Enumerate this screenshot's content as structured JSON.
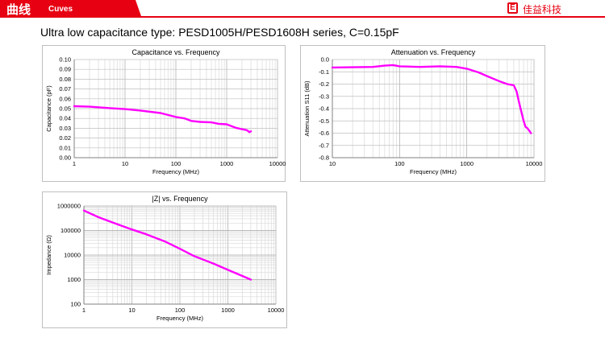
{
  "header": {
    "title": "曲线",
    "subtitle": "Cuves",
    "brand": "佳益科技",
    "brand_icon": "logo-icon",
    "accent": "#e60012"
  },
  "page_heading": "Ultra low capacitance type: PESD1005H/PESD1608H series, C=0.15pF",
  "line_color": "#ff00ff",
  "chart_data": [
    {
      "type": "line",
      "title": "Capacitance vs. Frequency",
      "xlabel": "Frequency (MHz)",
      "ylabel": "Capacitance (pF)",
      "x_scale": "log",
      "xlim": [
        1,
        10000
      ],
      "ylim": [
        0,
        0.1
      ],
      "x_ticks": [
        "1",
        "10",
        "100",
        "1000",
        "10000"
      ],
      "y_ticks": [
        "0.00",
        "0.01",
        "0.02",
        "0.03",
        "0.04",
        "0.05",
        "0.06",
        "0.07",
        "0.08",
        "0.09",
        "0.10"
      ],
      "grid": true,
      "series": [
        {
          "x": [
            1,
            2,
            5,
            10,
            20,
            50,
            100,
            150,
            200,
            300,
            500,
            700,
            1000,
            1500,
            2000,
            2500,
            2800,
            3000
          ],
          "y": [
            0.0525,
            0.052,
            0.0505,
            0.0495,
            0.048,
            0.0455,
            0.0415,
            0.04,
            0.0375,
            0.0365,
            0.036,
            0.0345,
            0.034,
            0.0305,
            0.029,
            0.028,
            0.026,
            0.027
          ]
        }
      ]
    },
    {
      "type": "line",
      "title": "Attenuation vs. Frequency",
      "xlabel": "Frequency (MHz)",
      "ylabel": "Attenuation S11 (dB)",
      "x_scale": "log",
      "xlim": [
        10,
        10000
      ],
      "ylim": [
        -0.8,
        0
      ],
      "x_ticks": [
        "10",
        "100",
        "1000",
        "10000"
      ],
      "y_ticks": [
        "0.0",
        "-0.1",
        "-0.2",
        "-0.3",
        "-0.4",
        "-0.5",
        "-0.6",
        "-0.7",
        "-0.8"
      ],
      "grid": true,
      "series": [
        {
          "x": [
            10,
            20,
            40,
            60,
            80,
            100,
            200,
            400,
            700,
            1000,
            1500,
            2000,
            3000,
            4000,
            4500,
            5000,
            5500,
            6000,
            7000,
            7500,
            8000,
            8500,
            9000
          ],
          "y": [
            -0.065,
            -0.063,
            -0.06,
            -0.05,
            -0.045,
            -0.055,
            -0.06,
            -0.055,
            -0.06,
            -0.075,
            -0.105,
            -0.135,
            -0.175,
            -0.2,
            -0.205,
            -0.21,
            -0.26,
            -0.35,
            -0.5,
            -0.55,
            -0.56,
            -0.58,
            -0.6
          ]
        }
      ]
    },
    {
      "type": "line",
      "title": "|Z| vs. Frequency",
      "xlabel": "Frequency (MHz)",
      "ylabel": "Impedance (Ω)",
      "x_scale": "log",
      "y_scale": "log",
      "xlim": [
        1,
        10000
      ],
      "ylim": [
        100,
        1000000
      ],
      "x_ticks": [
        "1",
        "10",
        "100",
        "1000",
        "10000"
      ],
      "y_ticks": [
        "100",
        "1000",
        "10000",
        "100000",
        "1000000"
      ],
      "grid": true,
      "series": [
        {
          "x": [
            1,
            2,
            5,
            10,
            20,
            50,
            100,
            200,
            500,
            1000,
            2000,
            3000
          ],
          "y": [
            650000,
            350000,
            180000,
            110000,
            70000,
            35000,
            18000,
            9000,
            4500,
            2500,
            1400,
            1000
          ]
        }
      ]
    }
  ]
}
